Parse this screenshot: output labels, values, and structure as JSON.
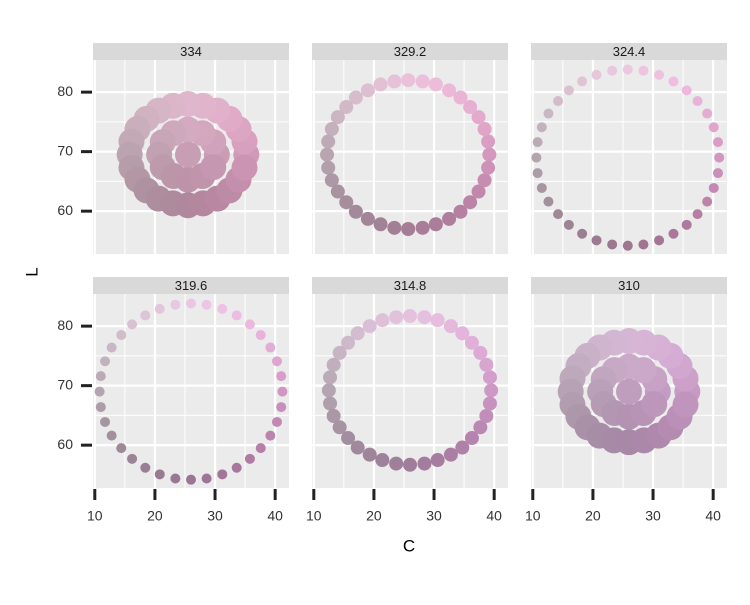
{
  "chart_data": {
    "type": "scatter",
    "xlabel": "C",
    "ylabel": "L",
    "xlim": [
      9.7,
      42.3
    ],
    "ylim": [
      52.8,
      85.4
    ],
    "xticks": [
      10,
      20,
      30,
      40
    ],
    "yticks": [
      60,
      70,
      80
    ],
    "grid": true,
    "panels": [
      {
        "title": "334",
        "x": [
          35.2,
          34.9,
          33.9,
          32.4,
          30.4,
          28.0,
          25.5,
          23.0,
          20.6,
          18.6,
          17.1,
          16.1,
          15.8,
          16.1,
          17.1,
          18.6,
          20.6,
          23.0,
          25.5,
          28.0,
          30.4,
          32.4,
          33.9,
          34.9,
          30.3,
          29.7,
          27.9,
          25.5,
          23.1,
          21.3,
          20.7,
          21.3,
          23.1,
          25.5,
          27.9,
          29.7,
          25.5
        ],
        "y": [
          69.5,
          71.7,
          73.8,
          75.5,
          76.9,
          77.7,
          78.0,
          77.7,
          76.9,
          75.5,
          73.8,
          71.7,
          69.5,
          67.3,
          65.3,
          63.5,
          62.1,
          61.3,
          61.0,
          61.3,
          62.1,
          63.5,
          65.3,
          67.3,
          69.5,
          71.6,
          73.1,
          73.7,
          73.1,
          71.6,
          69.5,
          67.4,
          65.9,
          65.3,
          65.9,
          67.4,
          69.5
        ]
      },
      {
        "title": "329.2",
        "x": [
          39.2,
          39.0,
          38.4,
          37.4,
          36.0,
          34.4,
          32.5,
          30.3,
          28.1,
          25.7,
          23.4,
          21.1,
          19.0,
          17.0,
          15.4,
          14.0,
          13.0,
          12.4,
          12.2,
          12.4,
          13.0,
          14.0,
          15.4,
          17.0,
          19.0,
          21.1,
          23.4,
          25.7,
          28.1,
          30.3,
          32.5,
          34.4,
          36.0,
          37.4,
          38.4,
          39.0
        ],
        "y": [
          69.5,
          71.7,
          73.8,
          75.8,
          77.5,
          79.1,
          80.3,
          81.3,
          81.8,
          82.0,
          81.8,
          81.3,
          80.3,
          79.1,
          77.5,
          75.8,
          73.8,
          71.7,
          69.5,
          67.3,
          65.2,
          63.3,
          61.5,
          59.9,
          58.7,
          57.8,
          57.2,
          57.0,
          57.2,
          57.8,
          58.7,
          59.9,
          61.5,
          63.3,
          65.2,
          67.3
        ]
      },
      {
        "title": "324.4",
        "x": [
          41.0,
          40.8,
          40.1,
          39.0,
          37.4,
          35.6,
          33.4,
          31.0,
          28.4,
          25.8,
          23.2,
          20.6,
          18.2,
          16.0,
          14.2,
          12.6,
          11.5,
          10.8,
          10.6,
          10.8,
          11.5,
          12.6,
          14.2,
          16.0,
          18.2,
          20.6,
          23.2,
          25.8,
          28.4,
          31.0,
          33.4,
          35.6,
          37.4,
          39.0,
          40.1,
          40.8
        ],
        "y": [
          69.0,
          71.6,
          74.1,
          76.4,
          78.5,
          80.3,
          81.8,
          82.9,
          83.6,
          83.8,
          83.6,
          82.9,
          81.8,
          80.3,
          78.5,
          76.4,
          74.1,
          71.6,
          69.0,
          66.4,
          63.9,
          61.6,
          59.5,
          57.7,
          56.2,
          55.1,
          54.4,
          54.2,
          54.4,
          55.1,
          56.2,
          57.7,
          59.5,
          61.6,
          63.9,
          66.4
        ]
      },
      {
        "title": "319.6",
        "x": [
          41.2,
          41.0,
          40.3,
          39.2,
          37.6,
          35.8,
          33.6,
          31.2,
          28.6,
          26.0,
          23.4,
          20.8,
          18.4,
          16.2,
          14.4,
          12.8,
          11.7,
          11.0,
          10.8,
          11.0,
          11.7,
          12.8,
          14.4,
          16.2,
          18.4,
          20.8,
          23.4,
          26.0,
          28.6,
          31.2,
          33.6,
          35.8,
          37.6,
          39.2,
          40.3,
          41.0
        ],
        "y": [
          69.0,
          71.6,
          74.1,
          76.4,
          78.5,
          80.3,
          81.8,
          82.9,
          83.6,
          83.8,
          83.6,
          82.9,
          81.8,
          80.3,
          78.5,
          76.4,
          74.1,
          71.6,
          69.0,
          66.4,
          63.9,
          61.6,
          59.5,
          57.7,
          56.2,
          55.1,
          54.4,
          54.2,
          54.4,
          55.1,
          56.2,
          57.7,
          59.5,
          61.6,
          63.9,
          66.4
        ]
      },
      {
        "title": "314.8",
        "x": [
          39.5,
          39.3,
          38.7,
          37.7,
          36.3,
          34.7,
          32.8,
          30.6,
          28.4,
          26.0,
          23.7,
          21.4,
          19.3,
          17.3,
          15.7,
          14.3,
          13.3,
          12.7,
          12.5,
          12.7,
          13.3,
          14.3,
          15.7,
          17.3,
          19.3,
          21.4,
          23.7,
          26.0,
          28.4,
          30.6,
          32.8,
          34.7,
          36.3,
          37.7,
          38.7,
          39.3
        ],
        "y": [
          69.2,
          71.4,
          73.5,
          75.5,
          77.2,
          78.8,
          80.0,
          81.0,
          81.5,
          81.7,
          81.5,
          81.0,
          80.0,
          78.8,
          77.2,
          75.5,
          73.5,
          71.4,
          69.2,
          67.0,
          64.9,
          63.0,
          61.2,
          59.6,
          58.4,
          57.5,
          56.9,
          56.7,
          56.9,
          57.5,
          58.4,
          59.6,
          61.2,
          63.0,
          64.9,
          67.0
        ]
      },
      {
        "title": "310",
        "x": [
          35.7,
          35.4,
          34.4,
          32.9,
          30.9,
          28.5,
          26.0,
          23.5,
          21.1,
          19.1,
          17.6,
          16.6,
          16.3,
          16.6,
          17.6,
          19.1,
          21.1,
          23.5,
          26.0,
          28.5,
          30.9,
          32.9,
          34.4,
          35.4,
          30.8,
          30.2,
          28.4,
          26.0,
          23.6,
          21.8,
          21.2,
          21.8,
          23.6,
          26.0,
          28.4,
          30.2,
          26.0
        ],
        "y": [
          69.0,
          71.2,
          73.3,
          75.0,
          76.4,
          77.2,
          77.5,
          77.2,
          76.4,
          75.0,
          73.3,
          71.2,
          69.0,
          66.8,
          64.8,
          63.0,
          61.6,
          60.8,
          60.5,
          60.8,
          61.6,
          63.0,
          64.8,
          66.8,
          69.0,
          71.1,
          72.6,
          73.2,
          72.6,
          71.1,
          69.0,
          66.9,
          65.4,
          64.8,
          65.4,
          66.9,
          69.0
        ]
      }
    ]
  }
}
